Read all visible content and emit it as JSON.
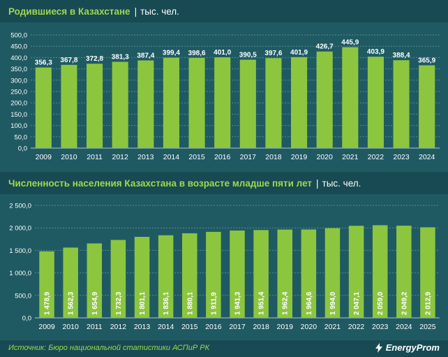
{
  "colors": {
    "bar": "#8cc63f",
    "background": "#1f5a63",
    "header": "#174a52",
    "accent": "#9fd84e"
  },
  "chart_data": [
    {
      "type": "bar",
      "title": "Родившиеся в Казахстане",
      "unit": "тыс. чел.",
      "categories": [
        "2009",
        "2010",
        "2011",
        "2012",
        "2013",
        "2014",
        "2015",
        "2016",
        "2017",
        "2018",
        "2019",
        "2020",
        "2021",
        "2022",
        "2023",
        "2024"
      ],
      "values": [
        356.3,
        367.8,
        372.8,
        381.3,
        387.4,
        399.4,
        398.6,
        401.0,
        390.5,
        397.6,
        401.9,
        426.7,
        445.9,
        403.9,
        388.4,
        365.9
      ],
      "value_labels": [
        "356,3",
        "367,8",
        "372,8",
        "381,3",
        "387,4",
        "399,4",
        "398,6",
        "401,0",
        "390,5",
        "397,6",
        "401,9",
        "426,7",
        "445,9",
        "403,9",
        "388,4",
        "365,9"
      ],
      "yticks": [
        "0,0",
        "50,0",
        "100,0",
        "150,0",
        "200,0",
        "250,0",
        "300,0",
        "350,0",
        "400,0",
        "450,0",
        "500,0"
      ],
      "ylim": [
        0,
        500
      ],
      "grid": true,
      "label_position": "above"
    },
    {
      "type": "bar",
      "title": "Численность населения Казахстана в возрасте младше пяти лет",
      "unit": "тыс. чел.",
      "categories": [
        "2009",
        "2010",
        "2011",
        "2012",
        "2013",
        "2014",
        "2015",
        "2016",
        "2017",
        "2018",
        "2019",
        "2020",
        "2021",
        "2022",
        "2023",
        "2024",
        "2025"
      ],
      "values": [
        1478.9,
        1562.3,
        1654.9,
        1732.3,
        1801.1,
        1836.1,
        1880.1,
        1911.9,
        1941.3,
        1951.4,
        1962.4,
        1964.6,
        1994.0,
        2047.1,
        2059.0,
        2049.2,
        2012.9
      ],
      "value_labels": [
        "1 478,9",
        "1 562,3",
        "1 654,9",
        "1 732,3",
        "1 801,1",
        "1 836,1",
        "1 880,1",
        "1 911,9",
        "1 941,3",
        "1 951,4",
        "1 962,4",
        "1 964,6",
        "1 994,0",
        "2 047,1",
        "2 059,0",
        "2 049,2",
        "2 012,9"
      ],
      "yticks": [
        "0,0",
        "500,0",
        "1 000,0",
        "1 500,0",
        "2 000,0",
        "2 500,0"
      ],
      "ylim": [
        0,
        2500
      ],
      "grid": true,
      "label_position": "inside-vertical"
    }
  ],
  "footer": {
    "source": "Источник: Бюро национальной статистики АСПиР РК",
    "brand": "EnergyProm"
  }
}
